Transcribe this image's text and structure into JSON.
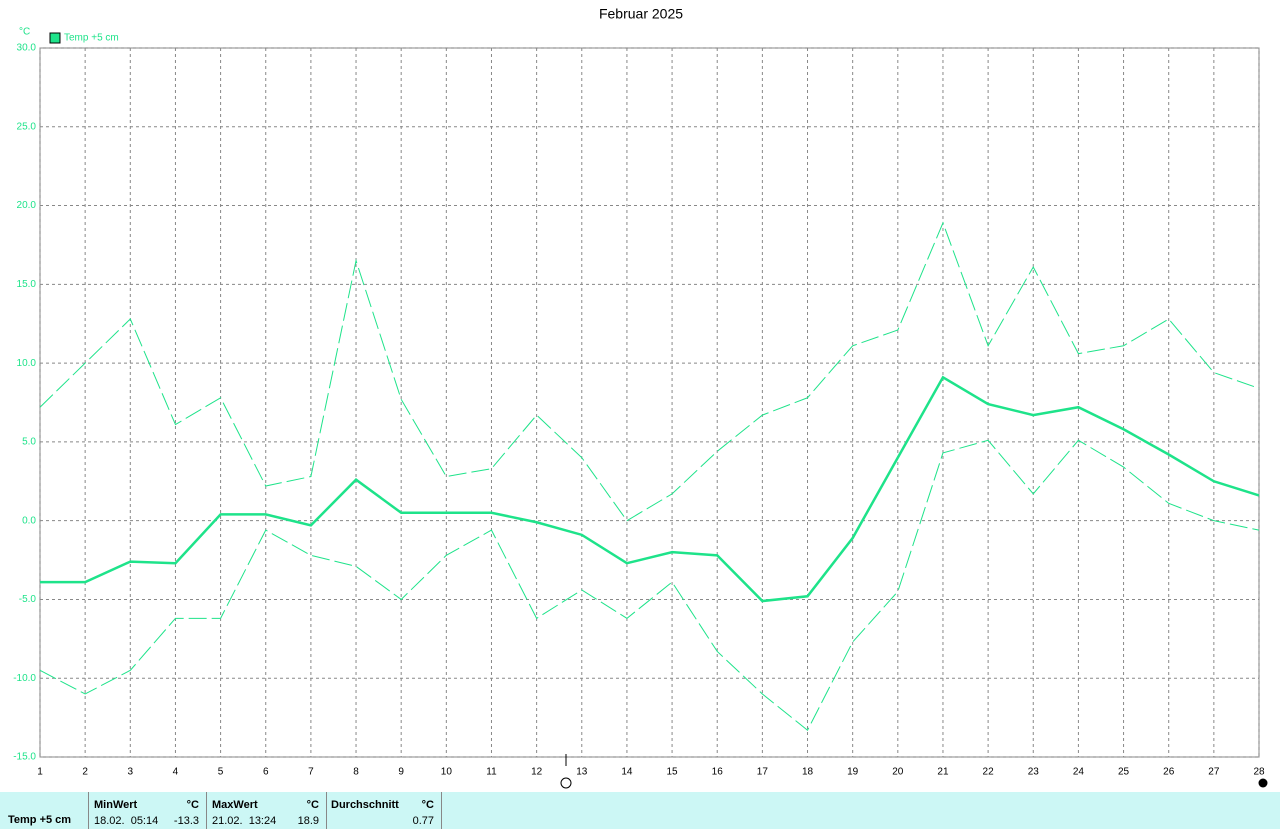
{
  "chart_data": {
    "type": "line",
    "title": "Februar 2025",
    "ylabel": "°C",
    "x": [
      1,
      2,
      3,
      4,
      5,
      6,
      7,
      8,
      9,
      10,
      11,
      12,
      13,
      14,
      15,
      16,
      17,
      18,
      19,
      20,
      21,
      22,
      23,
      24,
      25,
      26,
      27,
      28
    ],
    "xlim": [
      1,
      28
    ],
    "xticks": [
      1,
      2,
      3,
      4,
      5,
      6,
      7,
      8,
      9,
      10,
      11,
      12,
      13,
      14,
      15,
      16,
      17,
      18,
      19,
      20,
      21,
      22,
      23,
      24,
      25,
      26,
      27,
      28
    ],
    "ylim": [
      -15,
      30
    ],
    "yticks": [
      {
        "value": 30,
        "label": "30.0"
      },
      {
        "value": 25,
        "label": "25.0"
      },
      {
        "value": 20,
        "label": "20.0"
      },
      {
        "value": 15,
        "label": "15.0"
      },
      {
        "value": 10,
        "label": "10.0"
      },
      {
        "value": 5,
        "label": "5.0"
      },
      {
        "value": 0,
        "label": "0.0"
      },
      {
        "value": -5,
        "label": "-5.0"
      },
      {
        "value": -10,
        "label": "-10.0"
      },
      {
        "value": -15,
        "label": "-15.0"
      }
    ],
    "grid": true,
    "series": [
      {
        "name": "Temp +5 cm",
        "color": "#1ee38a",
        "line_style": "solid",
        "values": [
          -3.9,
          -3.9,
          -2.6,
          -2.7,
          0.4,
          0.4,
          -0.3,
          2.6,
          0.5,
          0.5,
          0.5,
          -0.1,
          -0.9,
          -2.7,
          -2.0,
          -2.2,
          -5.1,
          -4.8,
          -1.1,
          4.0,
          9.1,
          7.4,
          6.7,
          7.2,
          5.8,
          4.2,
          2.5,
          1.6
        ]
      },
      {
        "color": "#1ee38a",
        "line_style": "dashed",
        "values": [
          7.2,
          10.0,
          12.8,
          6.1,
          7.8,
          2.2,
          2.8,
          16.5,
          7.7,
          2.8,
          3.3,
          6.7,
          4.0,
          0.0,
          1.7,
          4.4,
          6.7,
          7.8,
          11.1,
          12.1,
          18.9,
          11.1,
          16.1,
          10.6,
          11.1,
          12.8,
          9.4,
          8.4
        ]
      },
      {
        "color": "#1ee38a",
        "line_style": "dashed",
        "values": [
          -9.5,
          -11.0,
          -9.5,
          -6.2,
          -6.2,
          -0.6,
          -2.2,
          -2.9,
          -5.0,
          -2.2,
          -0.6,
          -6.2,
          -4.4,
          -6.2,
          -3.9,
          -8.3,
          -11.0,
          -13.3,
          -7.7,
          -4.5,
          4.3,
          5.1,
          1.7,
          5.1,
          3.4,
          1.1,
          0.0,
          -0.6
        ]
      }
    ]
  },
  "summary": {
    "series": "Temp +5 cm",
    "columns": [
      {
        "header": "MinWert",
        "unit": "°C",
        "time": "18.02.  05:14",
        "value": -13.3
      },
      {
        "header": "MaxWert",
        "unit": "°C",
        "time": "21.02.  13:24",
        "value": 18.9
      },
      {
        "header": "Durchschnitt",
        "unit": "°C",
        "value": 0.77
      }
    ]
  }
}
